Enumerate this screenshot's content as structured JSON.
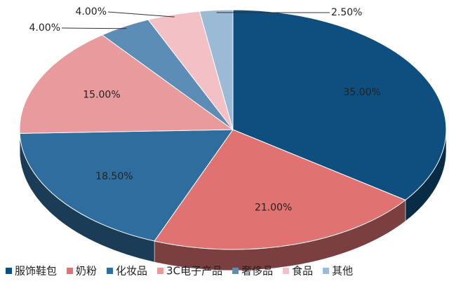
{
  "chart_data": {
    "type": "pie",
    "categories": [
      "服饰鞋包",
      "奶粉",
      "化妆品",
      "3C电子产品",
      "奢侈品",
      "食品",
      "其他"
    ],
    "values": [
      35,
      21,
      18.5,
      15,
      4,
      4,
      2.5
    ],
    "value_labels": [
      "35.00%",
      "21.00%",
      "18.50%",
      "15.00%",
      "4.00%",
      "4.00%",
      "2.50%"
    ],
    "colors": [
      "#0e4f80",
      "#e07272",
      "#2f6d9f",
      "#e99a9c",
      "#5b8db6",
      "#f3c1c5",
      "#9bbad6"
    ]
  }
}
